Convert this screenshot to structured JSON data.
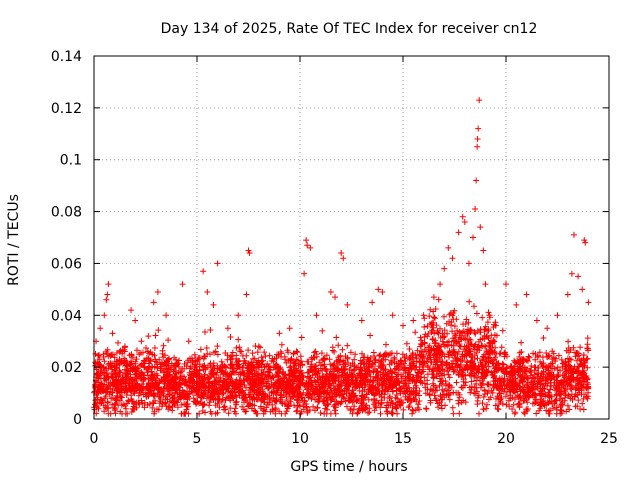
{
  "chart_data": {
    "type": "scatter",
    "title": "Day 134 of 2025, Rate Of TEC Index for receiver cn12",
    "xlabel": "GPS time / hours",
    "ylabel": "ROTI / TECUs",
    "xlim": [
      0,
      25
    ],
    "ylim": [
      0,
      0.14
    ],
    "x_ticks": [
      0,
      5,
      10,
      15,
      20,
      25
    ],
    "x_tick_labels": [
      "0",
      "5",
      "10",
      "15",
      "20",
      "25"
    ],
    "y_ticks": [
      0,
      0.02,
      0.04,
      0.06,
      0.08,
      0.1,
      0.12,
      0.14
    ],
    "y_tick_labels": [
      "0",
      "0.02",
      "0.04",
      "0.06",
      "0.08",
      "0.1",
      "0.12",
      "0.14"
    ],
    "grid": true,
    "marker": "+",
    "series": [
      {
        "name": "ROTI",
        "color": "#ff0000",
        "points": [
          [
            0.1,
            0.03
          ],
          [
            0.3,
            0.035
          ],
          [
            0.5,
            0.04
          ],
          [
            0.6,
            0.046
          ],
          [
            0.65,
            0.048
          ],
          [
            0.7,
            0.052
          ],
          [
            0.9,
            0.033
          ],
          [
            1.5,
            0.028
          ],
          [
            1.8,
            0.042
          ],
          [
            2.0,
            0.038
          ],
          [
            2.3,
            0.03
          ],
          [
            2.9,
            0.045
          ],
          [
            3.1,
            0.049
          ],
          [
            3.5,
            0.04
          ],
          [
            4.3,
            0.052
          ],
          [
            4.6,
            0.03
          ],
          [
            5.3,
            0.057
          ],
          [
            5.5,
            0.049
          ],
          [
            5.8,
            0.044
          ],
          [
            6.0,
            0.06
          ],
          [
            6.5,
            0.035
          ],
          [
            7.0,
            0.04
          ],
          [
            7.4,
            0.048
          ],
          [
            7.5,
            0.065
          ],
          [
            7.55,
            0.064
          ],
          [
            8.0,
            0.028
          ],
          [
            9.0,
            0.033
          ],
          [
            9.5,
            0.035
          ],
          [
            10.2,
            0.056
          ],
          [
            10.3,
            0.069
          ],
          [
            10.35,
            0.067
          ],
          [
            10.5,
            0.066
          ],
          [
            10.8,
            0.04
          ],
          [
            11.5,
            0.049
          ],
          [
            11.7,
            0.047
          ],
          [
            12.0,
            0.064
          ],
          [
            12.1,
            0.062
          ],
          [
            12.3,
            0.044
          ],
          [
            13.0,
            0.038
          ],
          [
            13.5,
            0.045
          ],
          [
            13.8,
            0.05
          ],
          [
            14.0,
            0.049
          ],
          [
            14.5,
            0.04
          ],
          [
            15.0,
            0.036
          ],
          [
            15.5,
            0.038
          ],
          [
            16.0,
            0.04
          ],
          [
            16.5,
            0.047
          ],
          [
            16.8,
            0.052
          ],
          [
            17.0,
            0.058
          ],
          [
            17.2,
            0.066
          ],
          [
            17.4,
            0.062
          ],
          [
            17.7,
            0.072
          ],
          [
            17.9,
            0.078
          ],
          [
            18.0,
            0.076
          ],
          [
            18.2,
            0.06
          ],
          [
            18.4,
            0.07
          ],
          [
            18.5,
            0.081
          ],
          [
            18.55,
            0.092
          ],
          [
            18.6,
            0.105
          ],
          [
            18.62,
            0.108
          ],
          [
            18.65,
            0.112
          ],
          [
            18.7,
            0.123
          ],
          [
            18.75,
            0.074
          ],
          [
            18.9,
            0.065
          ],
          [
            19.0,
            0.052
          ],
          [
            19.2,
            0.04
          ],
          [
            19.5,
            0.036
          ],
          [
            20.0,
            0.052
          ],
          [
            20.5,
            0.044
          ],
          [
            21.0,
            0.048
          ],
          [
            21.5,
            0.038
          ],
          [
            22.0,
            0.035
          ],
          [
            22.5,
            0.04
          ],
          [
            23.0,
            0.048
          ],
          [
            23.2,
            0.056
          ],
          [
            23.3,
            0.071
          ],
          [
            23.5,
            0.055
          ],
          [
            23.7,
            0.05
          ],
          [
            23.8,
            0.069
          ],
          [
            23.85,
            0.068
          ],
          [
            24.0,
            0.045
          ]
        ]
      }
    ]
  }
}
